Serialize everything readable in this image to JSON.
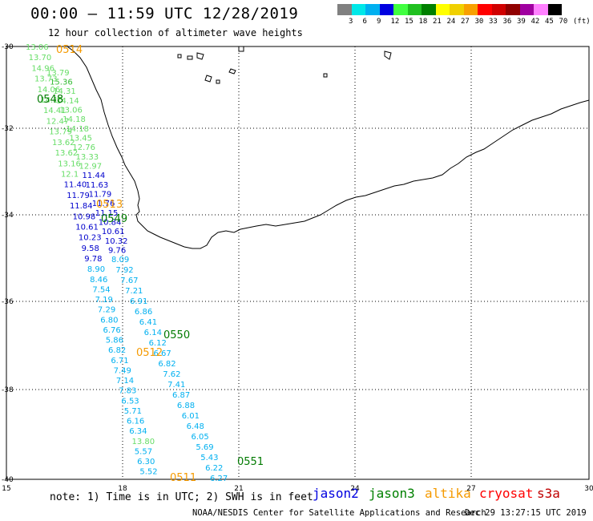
{
  "header": {
    "title": "00:00 – 11:59 UTC 12/28/2019",
    "subtitle": "12 hour collection of altimeter wave heights"
  },
  "legend": {
    "colors": [
      "#808080",
      "#00e8e8",
      "#00b0f0",
      "#0000e0",
      "#40ff40",
      "#20c020",
      "#008000",
      "#ffff00",
      "#f0d000",
      "#f8a000",
      "#ff0000",
      "#d00000",
      "#900000",
      "#a000a0",
      "#ff80ff",
      "#000000"
    ],
    "labels": [
      "3",
      "6",
      "9",
      "12",
      "15",
      "18",
      "21",
      "24",
      "27",
      "30",
      "33",
      "36",
      "39",
      "42",
      "45",
      "70",
      "(ft)"
    ]
  },
  "axes": {
    "lon_ticks": [
      "15",
      "18",
      "21",
      "24",
      "27",
      "30"
    ],
    "lat_ticks": [
      "-30",
      "-32",
      "-34",
      "-36",
      "-38",
      "-40"
    ]
  },
  "passes": [
    {
      "label": "0514",
      "color": "#f59a00"
    },
    {
      "label": "0548",
      "color": "#007a00"
    },
    {
      "label": "0513",
      "color": "#f59a00"
    },
    {
      "label": "0549",
      "color": "#007a00"
    },
    {
      "label": "0550",
      "color": "#007a00"
    },
    {
      "label": "0512",
      "color": "#f59a00"
    },
    {
      "label": "0551",
      "color": "#007a00"
    },
    {
      "label": "0511",
      "color": "#f59a00"
    }
  ],
  "wave_values": [
    {
      "v": "13.06",
      "c": "#66dd66"
    },
    {
      "v": "13.79",
      "c": "#66dd66"
    },
    {
      "v": "13.70",
      "c": "#66dd66"
    },
    {
      "v": "15.36",
      "c": "#33bb33"
    },
    {
      "v": "14.96",
      "c": "#66dd66"
    },
    {
      "v": "14.31",
      "c": "#66dd66"
    },
    {
      "v": "13.73",
      "c": "#66dd66"
    },
    {
      "v": "14.14",
      "c": "#66dd66"
    },
    {
      "v": "14.06",
      "c": "#66dd66"
    },
    {
      "v": "13.06",
      "c": "#66dd66"
    },
    {
      "v": "14.15",
      "c": "#66dd66"
    },
    {
      "v": "14.18",
      "c": "#66dd66"
    },
    {
      "v": "14.41",
      "c": "#66dd66"
    },
    {
      "v": "14.18",
      "c": "#66dd66"
    },
    {
      "v": "12.47",
      "c": "#66dd66"
    },
    {
      "v": "13.45",
      "c": "#66dd66"
    },
    {
      "v": "13.79",
      "c": "#66dd66"
    },
    {
      "v": "12.76",
      "c": "#66dd66"
    },
    {
      "v": "13.62",
      "c": "#66dd66"
    },
    {
      "v": "13.33",
      "c": "#66dd66"
    },
    {
      "v": "13.62",
      "c": "#66dd66"
    },
    {
      "v": "12.97",
      "c": "#66dd66"
    },
    {
      "v": "13.16",
      "c": "#66dd66"
    },
    {
      "v": "11.44",
      "c": "#0000cc"
    },
    {
      "v": "12.1",
      "c": "#66dd66"
    },
    {
      "v": "11.63",
      "c": "#0000cc"
    },
    {
      "v": "11.40",
      "c": "#0000cc"
    },
    {
      "v": "11.79",
      "c": "#0000cc"
    },
    {
      "v": "11.79",
      "c": "#0000cc"
    },
    {
      "v": "11.76",
      "c": "#0000cc"
    },
    {
      "v": "11.84",
      "c": "#0000cc"
    },
    {
      "v": "11.15",
      "c": "#0000cc"
    },
    {
      "v": "10.98",
      "c": "#0000cc"
    },
    {
      "v": "10.84",
      "c": "#0000cc"
    },
    {
      "v": "10.61",
      "c": "#0000cc"
    },
    {
      "v": "10.61",
      "c": "#0000cc"
    },
    {
      "v": "10.23",
      "c": "#0000cc"
    },
    {
      "v": "10.32",
      "c": "#0000cc"
    },
    {
      "v": "9.58",
      "c": "#0000cc"
    },
    {
      "v": "9.76",
      "c": "#0000cc"
    },
    {
      "v": "9.78",
      "c": "#0000cc"
    },
    {
      "v": "8.09",
      "c": "#00b0f0"
    },
    {
      "v": "8.90",
      "c": "#00b0f0"
    },
    {
      "v": "7.92",
      "c": "#00b0f0"
    },
    {
      "v": "8.46",
      "c": "#00b0f0"
    },
    {
      "v": "7.67",
      "c": "#00b0f0"
    },
    {
      "v": "7.54",
      "c": "#00b0f0"
    },
    {
      "v": "7.21",
      "c": "#00b0f0"
    },
    {
      "v": "7.19",
      "c": "#00b0f0"
    },
    {
      "v": "6.91",
      "c": "#00b0f0"
    },
    {
      "v": "7.29",
      "c": "#00b0f0"
    },
    {
      "v": "6.86",
      "c": "#00b0f0"
    },
    {
      "v": "6.80",
      "c": "#00b0f0"
    },
    {
      "v": "6.41",
      "c": "#00b0f0"
    },
    {
      "v": "6.76",
      "c": "#00b0f0"
    },
    {
      "v": "6.14",
      "c": "#00b0f0"
    },
    {
      "v": "5.86",
      "c": "#00b0f0"
    },
    {
      "v": "6.12",
      "c": "#00b0f0"
    },
    {
      "v": "6.82",
      "c": "#00b0f0"
    },
    {
      "v": "6.67",
      "c": "#00b0f0"
    },
    {
      "v": "6.71",
      "c": "#00b0f0"
    },
    {
      "v": "6.82",
      "c": "#00b0f0"
    },
    {
      "v": "7.49",
      "c": "#00b0f0"
    },
    {
      "v": "7.62",
      "c": "#00b0f0"
    },
    {
      "v": "7.14",
      "c": "#00b0f0"
    },
    {
      "v": "7.41",
      "c": "#00b0f0"
    },
    {
      "v": "7.83",
      "c": "#00b0f0"
    },
    {
      "v": "6.87",
      "c": "#00b0f0"
    },
    {
      "v": "6.53",
      "c": "#00b0f0"
    },
    {
      "v": "6.88",
      "c": "#00b0f0"
    },
    {
      "v": "5.71",
      "c": "#00b0f0"
    },
    {
      "v": "6.01",
      "c": "#00b0f0"
    },
    {
      "v": "6.16",
      "c": "#00b0f0"
    },
    {
      "v": "6.48",
      "c": "#00b0f0"
    },
    {
      "v": "6.34",
      "c": "#00b0f0"
    },
    {
      "v": "6.05",
      "c": "#00b0f0"
    },
    {
      "v": "13.80",
      "c": "#66dd66"
    },
    {
      "v": "5.69",
      "c": "#00b0f0"
    },
    {
      "v": "5.57",
      "c": "#00b0f0"
    },
    {
      "v": "5.43",
      "c": "#00b0f0"
    },
    {
      "v": "6.30",
      "c": "#00b0f0"
    },
    {
      "v": "6.22",
      "c": "#00b0f0"
    },
    {
      "v": "5.52",
      "c": "#00b0f0"
    },
    {
      "v": "6.27",
      "c": "#00b0f0"
    }
  ],
  "footer": {
    "note": "note: 1) Time is in UTC; 2) SWH is in feet",
    "satellites": [
      {
        "name": "jason2",
        "color": "#0000e0"
      },
      {
        "name": "jason3",
        "color": "#008000"
      },
      {
        "name": "altika",
        "color": "#f59a00"
      },
      {
        "name": "cryosat",
        "color": "#ff0000"
      },
      {
        "name": "s3a",
        "color": "#c00000"
      }
    ],
    "credit": "NOAA/NESDIS Center for Satellite Applications and Research",
    "timestamp": "Dec 29 13:27:15 UTC 2019"
  }
}
